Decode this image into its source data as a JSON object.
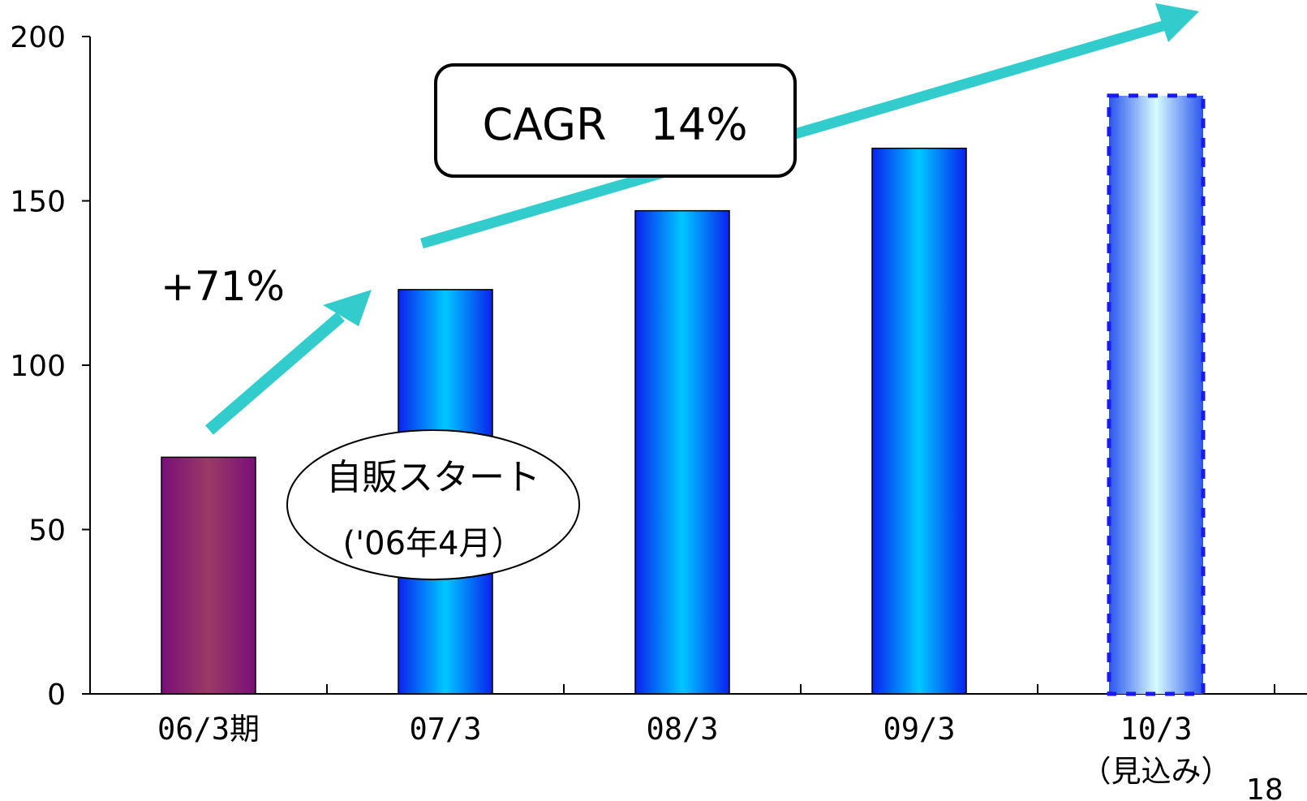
{
  "chart_data": {
    "type": "bar",
    "categories": [
      "06/3期",
      "07/3",
      "08/3",
      "09/3",
      "10/3"
    ],
    "category_sublabels": [
      "",
      "",
      "",
      "",
      "（見込み）"
    ],
    "values": [
      72,
      123,
      147,
      166,
      182
    ],
    "forecast_index": 4,
    "ylim": [
      0,
      200
    ],
    "yticks": [
      0,
      50,
      100,
      150,
      200
    ],
    "grid": false,
    "colors": {
      "first_bar_edge": "#7a0f78",
      "first_bar_center": "#9a3a66",
      "bar_edge": "#0a22ee",
      "bar_center": "#00c8ff",
      "forecast_edge": "#2a55ee",
      "forecast_center": "#d8fbff",
      "forecast_border": "#1a1aee",
      "arrow": "#33cccc"
    },
    "annotations": {
      "growth_label": "+71%",
      "cagr_label": "CAGR　14%",
      "callout_line1": "自販スタート",
      "callout_line2": "('06年4月）"
    },
    "page_number": "18"
  }
}
